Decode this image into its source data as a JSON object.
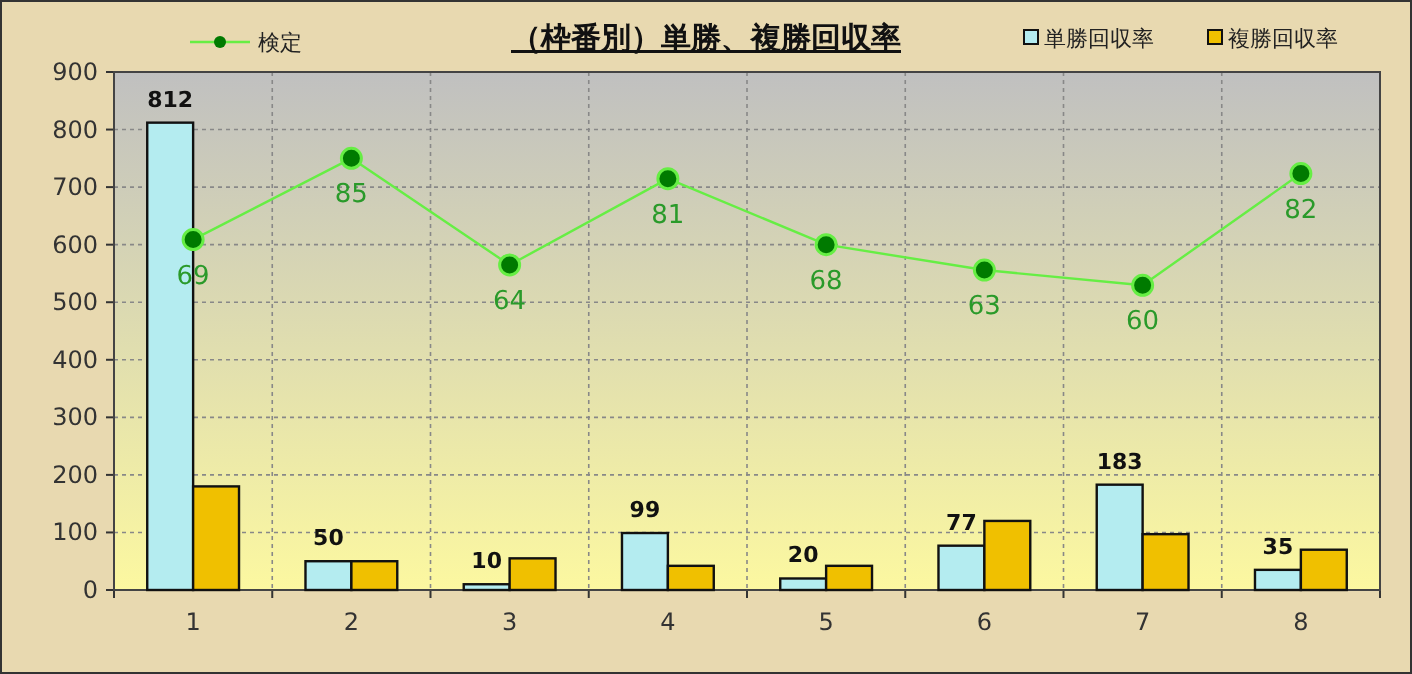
{
  "chart_data": {
    "type": "bar",
    "title": "（枠番別）単勝、複勝回収率",
    "categories": [
      "1",
      "2",
      "3",
      "4",
      "5",
      "6",
      "7",
      "8"
    ],
    "series": [
      {
        "name": "単勝回収率",
        "color": "#b4ecf0",
        "values": [
          812,
          50,
          10,
          99,
          20,
          77,
          183,
          35
        ],
        "value_labels": [
          "812",
          "50",
          "10",
          "99",
          "20",
          "77",
          "183",
          "35"
        ]
      },
      {
        "name": "複勝回収率",
        "color": "#f0c000",
        "values": [
          180,
          50,
          55,
          42,
          42,
          120,
          97,
          70
        ]
      },
      {
        "name": "検定",
        "type": "line",
        "axis": "y2",
        "color": "#66ee44",
        "marker": "circle",
        "values": [
          69,
          85,
          64,
          81,
          68,
          63,
          60,
          82
        ],
        "value_labels": [
          "69",
          "85",
          "64",
          "81",
          "68",
          "63",
          "60",
          "82"
        ]
      }
    ],
    "ylim": [
      0,
      900
    ],
    "yticks": [
      0,
      100,
      200,
      300,
      400,
      500,
      600,
      700,
      800,
      900
    ],
    "y2lim": [
      0,
      102
    ],
    "tick_labels": "xy",
    "grid": true,
    "legend": "top"
  }
}
